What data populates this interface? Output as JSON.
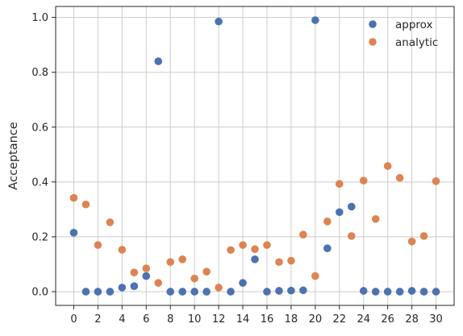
{
  "chart_data": {
    "type": "scatter",
    "title": "",
    "xlabel": "",
    "ylabel": "Acceptance",
    "xlim": [
      -1.5,
      31.5
    ],
    "ylim": [
      -0.05,
      1.04
    ],
    "xticks": [
      0,
      2,
      4,
      6,
      8,
      10,
      12,
      14,
      16,
      18,
      20,
      22,
      24,
      26,
      28,
      30
    ],
    "yticks": [
      0.0,
      0.2,
      0.4,
      0.6,
      0.8,
      1.0
    ],
    "ytick_labels": [
      "0.0",
      "0.2",
      "0.4",
      "0.6",
      "0.8",
      "1.0"
    ],
    "grid": true,
    "legend_position": "top-right",
    "series": [
      {
        "name": "approx",
        "color": "#4c72b0",
        "x": [
          0,
          1,
          2,
          3,
          4,
          5,
          6,
          7,
          8,
          9,
          10,
          11,
          12,
          13,
          14,
          15,
          16,
          17,
          18,
          19,
          20,
          21,
          22,
          23,
          24,
          25,
          26,
          27,
          28,
          29,
          30
        ],
        "y": [
          0.215,
          0.0,
          0.0,
          0.0,
          0.015,
          0.02,
          0.057,
          0.84,
          0.0,
          0.0,
          0.0,
          0.0,
          0.985,
          0.0,
          0.032,
          0.118,
          0.0,
          0.003,
          0.004,
          0.005,
          0.99,
          0.158,
          0.29,
          0.31,
          0.003,
          0.0,
          0.0,
          0.0,
          0.003,
          0.0,
          0.0
        ]
      },
      {
        "name": "analytic",
        "color": "#dd8452",
        "x": [
          0,
          1,
          2,
          3,
          4,
          5,
          6,
          7,
          8,
          9,
          10,
          11,
          12,
          13,
          14,
          15,
          16,
          17,
          18,
          19,
          20,
          21,
          22,
          23,
          24,
          25,
          26,
          27,
          28,
          29,
          30
        ],
        "y": [
          0.342,
          0.318,
          0.17,
          0.253,
          0.153,
          0.07,
          0.085,
          0.032,
          0.108,
          0.118,
          0.048,
          0.073,
          0.015,
          0.152,
          0.17,
          0.155,
          0.17,
          0.108,
          0.113,
          0.208,
          0.057,
          0.256,
          0.393,
          0.203,
          0.405,
          0.265,
          0.458,
          0.415,
          0.183,
          0.203,
          0.403
        ]
      }
    ]
  }
}
